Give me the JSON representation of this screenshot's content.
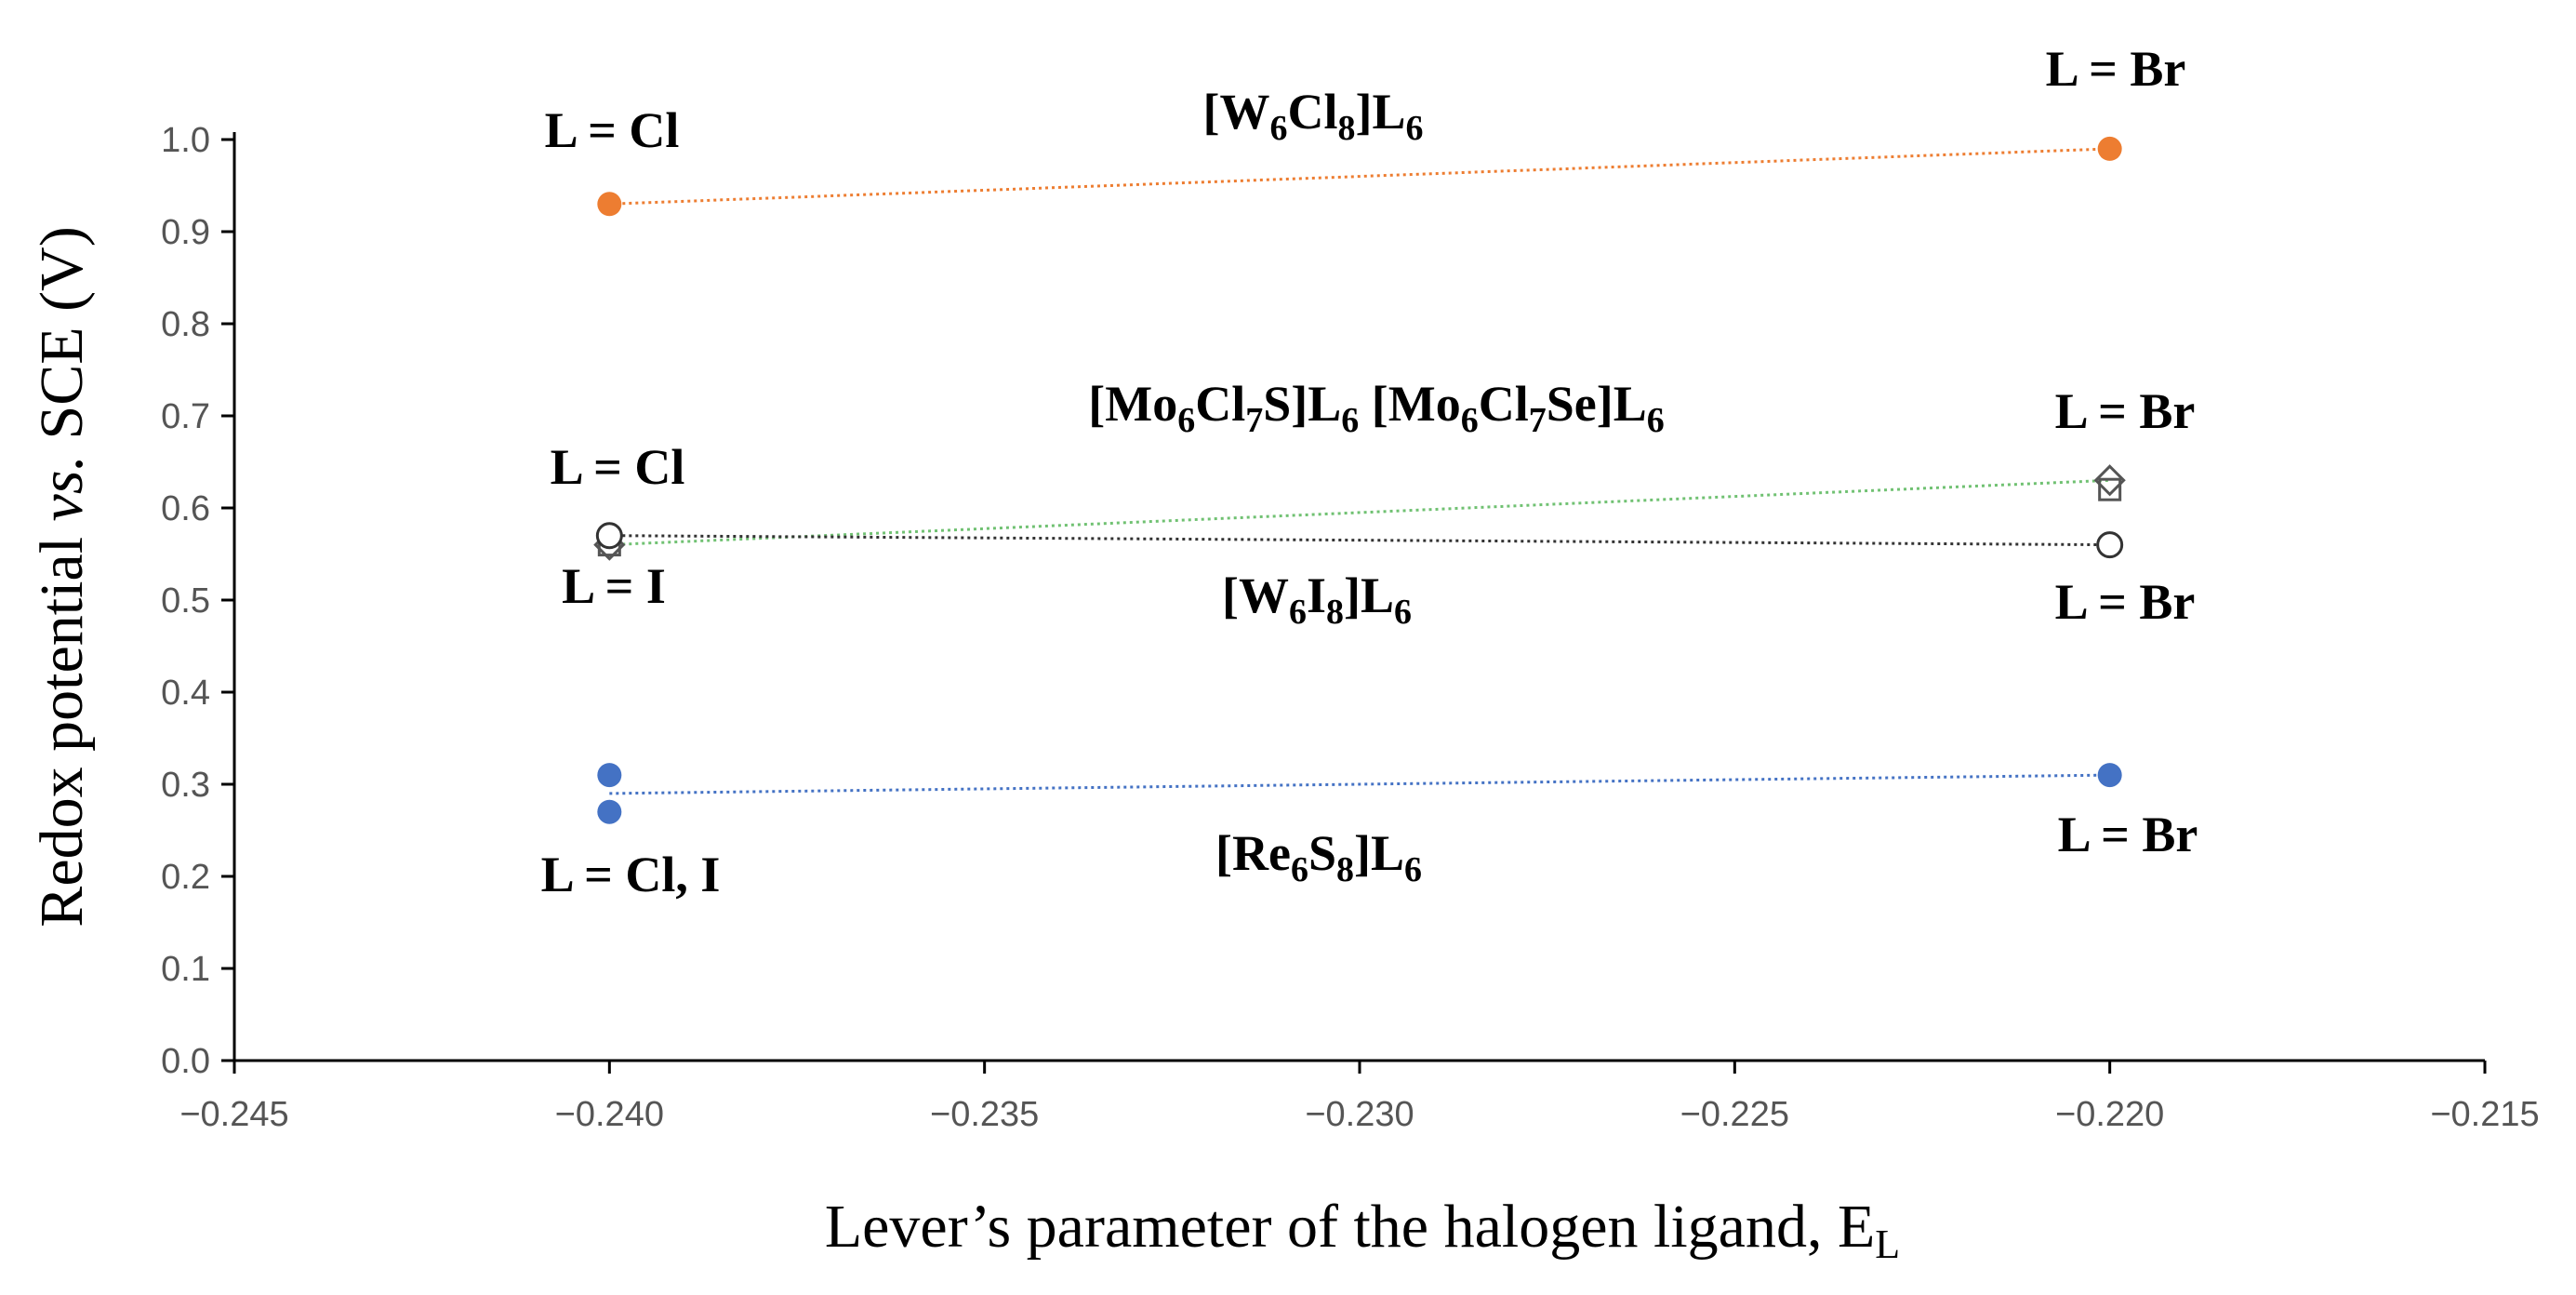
{
  "chart_data": {
    "type": "scatter",
    "title": "",
    "ylabel": {
      "pre": "Redox potential ",
      "italic": "vs.",
      "post": " SCE (V)"
    },
    "xlabel": {
      "main": "Lever’s parameter of the halogen ligand, E",
      "sub": "L"
    },
    "xlim": [
      -0.245,
      -0.215
    ],
    "ylim": [
      0.0,
      1.0
    ],
    "xticks": [
      -0.245,
      -0.24,
      -0.235,
      -0.23,
      -0.225,
      -0.22,
      -0.215
    ],
    "yticks": [
      0.0,
      0.1,
      0.2,
      0.3,
      0.4,
      0.5,
      0.6,
      0.7,
      0.8,
      0.9,
      1.0
    ],
    "grid": false,
    "series": [
      {
        "name": "[W6Cl8]L6",
        "marker": "filled-circle",
        "color": "#ED7D31",
        "points": [
          {
            "x": -0.24,
            "y": 0.93
          },
          {
            "x": -0.22,
            "y": 0.99
          }
        ],
        "trend": [
          {
            "x": -0.24,
            "y": 0.93
          },
          {
            "x": -0.22,
            "y": 0.99
          }
        ]
      },
      {
        "name": "[Mo6Cl7S]L6",
        "marker": "open-diamond",
        "color": "#555555",
        "points": [
          {
            "x": -0.24,
            "y": 0.56
          },
          {
            "x": -0.22,
            "y": 0.63
          }
        ],
        "trend": [
          {
            "x": -0.24,
            "y": 0.56
          },
          {
            "x": -0.22,
            "y": 0.63
          }
        ],
        "trend_color": "#70C172"
      },
      {
        "name": "[Mo6Cl7Se]L6",
        "marker": "open-square",
        "color": "#555555",
        "points": [
          {
            "x": -0.24,
            "y": 0.56
          },
          {
            "x": -0.22,
            "y": 0.62
          }
        ]
      },
      {
        "name": "[W6I8]L6",
        "marker": "open-circle",
        "color": "#333333",
        "points": [
          {
            "x": -0.24,
            "y": 0.57
          },
          {
            "x": -0.22,
            "y": 0.56
          }
        ],
        "trend": [
          {
            "x": -0.24,
            "y": 0.57
          },
          {
            "x": -0.22,
            "y": 0.56
          }
        ]
      },
      {
        "name": "[Re6S8]L6",
        "marker": "filled-circle",
        "color": "#4472C4",
        "points": [
          {
            "x": -0.24,
            "y": 0.31
          },
          {
            "x": -0.24,
            "y": 0.27
          },
          {
            "x": -0.22,
            "y": 0.31
          }
        ],
        "trend": [
          {
            "x": -0.24,
            "y": 0.29
          },
          {
            "x": -0.22,
            "y": 0.31
          }
        ]
      }
    ],
    "annotations": {
      "w6cl8_cl": "L = Cl",
      "w6cl8_br": "L = Br",
      "w6cl8_name": {
        "a": "[W",
        "b": "6",
        "c": "Cl",
        "d": "8",
        "e": "]L",
        "f": "6"
      },
      "mo_name": {
        "a": "[Mo",
        "b": "6",
        "c": "Cl",
        "d": "7",
        "e": "S]L",
        "f": "6",
        "g": " [Mo",
        "h": "6",
        "i": "Cl",
        "j": "7",
        "k": "Se]L",
        "l": "6"
      },
      "mo_br": "L = Br",
      "mo_cl": "L = Cl",
      "w6i8_i": "L = I",
      "w6i8_name": {
        "a": "[W",
        "b": "6",
        "c": "I",
        "d": "8",
        "e": "]L",
        "f": "6"
      },
      "w6i8_br": "L = Br",
      "re_cli": "L = Cl, I",
      "re_name": {
        "a": "[Re",
        "b": "6",
        "c": "S",
        "d": "8",
        "e": "]L",
        "f": "6"
      },
      "re_br": "L = Br"
    }
  }
}
